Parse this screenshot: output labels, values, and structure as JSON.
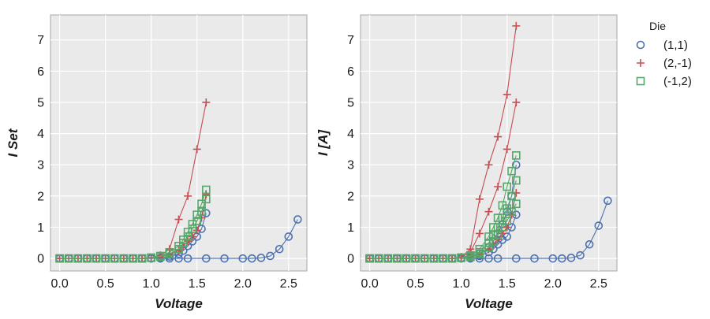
{
  "colors": {
    "(1,1)": "#4c72b0",
    "(2,-1)": "#c44e52",
    "(-1,2)": "#55a868",
    "panel_bg": "#eaeaea",
    "grid": "#ffffff"
  },
  "legend": {
    "title": "Die",
    "entries": [
      {
        "label": "(1,1)",
        "marker": "circle",
        "color": "#4c72b0"
      },
      {
        "label": "(2,-1)",
        "marker": "plus",
        "color": "#c44e52"
      },
      {
        "label": "(-1,2)",
        "marker": "square",
        "color": "#55a868"
      }
    ]
  },
  "chart_data": [
    {
      "type": "line",
      "xlabel": "Voltage",
      "ylabel": "I Set",
      "xlim": [
        -0.1,
        2.7
      ],
      "ylim": [
        -0.4,
        7.8
      ],
      "xticks": [
        "0.0",
        "0.5",
        "1.0",
        "1.5",
        "2.0",
        "2.5"
      ],
      "yticks": [
        "0",
        "1",
        "2",
        "3",
        "4",
        "5",
        "6",
        "7"
      ],
      "grid": true,
      "series": [
        {
          "name": "(1,1)",
          "marker": "circle",
          "x": [
            0,
            0.1,
            0.2,
            0.3,
            0.4,
            0.5,
            0.6,
            0.7,
            0.8,
            0.9,
            1.0,
            1.1,
            1.2,
            1.3,
            1.4,
            1.6,
            1.8,
            2.0,
            2.1,
            2.2,
            2.3,
            2.4,
            2.5,
            2.6
          ],
          "y": [
            0,
            0,
            0,
            0,
            0,
            0,
            0,
            0,
            0,
            0,
            0,
            0,
            0,
            0,
            0,
            0,
            0,
            0,
            0,
            0.02,
            0.08,
            0.3,
            0.7,
            1.25
          ]
        },
        {
          "name": "(1,1)",
          "marker": "circle",
          "x": [
            0,
            0.1,
            0.2,
            0.3,
            0.4,
            0.5,
            0.6,
            0.7,
            0.8,
            0.9,
            1.0,
            1.1,
            1.2,
            1.3,
            1.35,
            1.4,
            1.45,
            1.5,
            1.55,
            1.6
          ],
          "y": [
            0,
            0,
            0,
            0,
            0,
            0,
            0,
            0,
            0,
            0,
            0,
            0.02,
            0.06,
            0.15,
            0.25,
            0.4,
            0.55,
            0.7,
            0.95,
            1.45
          ]
        },
        {
          "name": "(2,-1)",
          "marker": "plus",
          "x": [
            0,
            0.1,
            0.2,
            0.3,
            0.4,
            0.5,
            0.6,
            0.7,
            0.8,
            0.9,
            1.0,
            1.1,
            1.2,
            1.3,
            1.4,
            1.5,
            1.6
          ],
          "y": [
            0,
            0,
            0,
            0,
            0,
            0,
            0,
            0,
            0,
            0,
            0.03,
            0.1,
            0.3,
            1.25,
            2.0,
            3.5,
            5.0
          ]
        },
        {
          "name": "(2,-1)",
          "marker": "plus",
          "x": [
            0,
            0.1,
            0.2,
            0.3,
            0.4,
            0.5,
            0.6,
            0.7,
            0.8,
            0.9,
            1.0,
            1.1,
            1.2,
            1.3,
            1.35,
            1.4,
            1.45,
            1.5,
            1.55,
            1.6
          ],
          "y": [
            0,
            0,
            0,
            0,
            0,
            0,
            0,
            0,
            0,
            0,
            0.02,
            0.05,
            0.12,
            0.25,
            0.4,
            0.55,
            0.7,
            0.9,
            1.3,
            2.05
          ]
        },
        {
          "name": "(-1,2)",
          "marker": "square",
          "x": [
            0,
            0.1,
            0.2,
            0.3,
            0.4,
            0.5,
            0.6,
            0.7,
            0.8,
            0.9,
            1.0,
            1.1,
            1.2,
            1.3,
            1.35,
            1.4,
            1.45,
            1.5,
            1.55,
            1.6
          ],
          "y": [
            0,
            0,
            0,
            0,
            0,
            0,
            0,
            0,
            0,
            0,
            0.02,
            0.06,
            0.15,
            0.3,
            0.5,
            0.7,
            0.95,
            1.2,
            1.5,
            1.9
          ]
        },
        {
          "name": "(-1,2)",
          "marker": "square",
          "x": [
            0,
            0.1,
            0.2,
            0.3,
            0.4,
            0.5,
            0.6,
            0.7,
            0.8,
            0.9,
            1.0,
            1.1,
            1.2,
            1.3,
            1.35,
            1.4,
            1.45,
            1.5,
            1.55,
            1.6
          ],
          "y": [
            0,
            0,
            0,
            0,
            0,
            0,
            0,
            0,
            0,
            0,
            0.03,
            0.08,
            0.2,
            0.4,
            0.6,
            0.85,
            1.1,
            1.4,
            1.75,
            2.2
          ]
        }
      ]
    },
    {
      "type": "line",
      "xlabel": "Voltage",
      "ylabel": "I [A]",
      "xlim": [
        -0.1,
        2.7
      ],
      "ylim": [
        -0.4,
        7.8
      ],
      "xticks": [
        "0.0",
        "0.5",
        "1.0",
        "1.5",
        "2.0",
        "2.5"
      ],
      "yticks": [
        "0",
        "1",
        "2",
        "3",
        "4",
        "5",
        "6",
        "7"
      ],
      "grid": true,
      "series": [
        {
          "name": "(1,1)",
          "marker": "circle",
          "x": [
            0,
            0.1,
            0.2,
            0.3,
            0.4,
            0.5,
            0.6,
            0.7,
            0.8,
            0.9,
            1.0,
            1.1,
            1.2,
            1.3,
            1.4,
            1.6,
            1.8,
            2.0,
            2.1,
            2.2,
            2.3,
            2.4,
            2.5,
            2.6
          ],
          "y": [
            0,
            0,
            0,
            0,
            0,
            0,
            0,
            0,
            0,
            0,
            0,
            0,
            0,
            0,
            0,
            0,
            0,
            0,
            0,
            0.02,
            0.1,
            0.45,
            1.05,
            1.85
          ]
        },
        {
          "name": "(1,1)",
          "marker": "circle",
          "x": [
            0,
            0.1,
            0.2,
            0.3,
            0.4,
            0.5,
            0.6,
            0.7,
            0.8,
            0.9,
            1.0,
            1.1,
            1.2,
            1.3,
            1.35,
            1.4,
            1.45,
            1.5,
            1.55,
            1.6
          ],
          "y": [
            0,
            0,
            0,
            0,
            0,
            0,
            0,
            0,
            0,
            0,
            0.02,
            0.05,
            0.15,
            0.35,
            0.55,
            0.8,
            1.1,
            1.5,
            2.0,
            3.0
          ]
        },
        {
          "name": "(1,1)",
          "marker": "circle",
          "x": [
            0,
            0.1,
            0.2,
            0.3,
            0.4,
            0.5,
            0.6,
            0.7,
            0.8,
            0.9,
            1.0,
            1.1,
            1.2,
            1.3,
            1.35,
            1.4,
            1.45,
            1.5,
            1.55,
            1.6
          ],
          "y": [
            0,
            0,
            0,
            0,
            0,
            0,
            0,
            0,
            0,
            0,
            0.01,
            0.03,
            0.08,
            0.2,
            0.3,
            0.45,
            0.6,
            0.7,
            1.0,
            1.4
          ]
        },
        {
          "name": "(2,-1)",
          "marker": "plus",
          "x": [
            0,
            0.1,
            0.2,
            0.3,
            0.4,
            0.5,
            0.6,
            0.7,
            0.8,
            0.9,
            1.0,
            1.1,
            1.2,
            1.3,
            1.4,
            1.5,
            1.6
          ],
          "y": [
            0,
            0,
            0,
            0,
            0,
            0,
            0,
            0,
            0,
            0,
            0.05,
            0.3,
            1.9,
            3.0,
            3.9,
            5.25,
            7.45
          ]
        },
        {
          "name": "(2,-1)",
          "marker": "plus",
          "x": [
            0,
            0.1,
            0.2,
            0.3,
            0.4,
            0.5,
            0.6,
            0.7,
            0.8,
            0.9,
            1.0,
            1.1,
            1.2,
            1.3,
            1.4,
            1.5,
            1.6
          ],
          "y": [
            0,
            0,
            0,
            0,
            0,
            0,
            0,
            0,
            0,
            0,
            0.04,
            0.2,
            0.8,
            1.5,
            2.3,
            3.5,
            5.0
          ]
        },
        {
          "name": "(2,-1)",
          "marker": "plus",
          "x": [
            0,
            0.1,
            0.2,
            0.3,
            0.4,
            0.5,
            0.6,
            0.7,
            0.8,
            0.9,
            1.0,
            1.1,
            1.2,
            1.3,
            1.35,
            1.4,
            1.45,
            1.5,
            1.55,
            1.6
          ],
          "y": [
            0,
            0,
            0,
            0,
            0,
            0,
            0,
            0,
            0,
            0,
            0.02,
            0.06,
            0.15,
            0.3,
            0.45,
            0.6,
            0.8,
            1.0,
            1.4,
            2.1
          ]
        },
        {
          "name": "(-1,2)",
          "marker": "square",
          "x": [
            0,
            0.1,
            0.2,
            0.3,
            0.4,
            0.5,
            0.6,
            0.7,
            0.8,
            0.9,
            1.0,
            1.1,
            1.2,
            1.3,
            1.35,
            1.4,
            1.45,
            1.5,
            1.55,
            1.6
          ],
          "y": [
            0,
            0,
            0,
            0,
            0,
            0,
            0,
            0,
            0,
            0,
            0.03,
            0.1,
            0.3,
            0.7,
            1.0,
            1.3,
            1.7,
            2.3,
            2.8,
            3.3
          ]
        },
        {
          "name": "(-1,2)",
          "marker": "square",
          "x": [
            0,
            0.1,
            0.2,
            0.3,
            0.4,
            0.5,
            0.6,
            0.7,
            0.8,
            0.9,
            1.0,
            1.1,
            1.2,
            1.3,
            1.35,
            1.4,
            1.45,
            1.5,
            1.55,
            1.6
          ],
          "y": [
            0,
            0,
            0,
            0,
            0,
            0,
            0,
            0,
            0,
            0,
            0.02,
            0.08,
            0.2,
            0.5,
            0.75,
            1.0,
            1.3,
            1.6,
            2.0,
            2.5
          ]
        },
        {
          "name": "(-1,2)",
          "marker": "square",
          "x": [
            0,
            0.1,
            0.2,
            0.3,
            0.4,
            0.5,
            0.6,
            0.7,
            0.8,
            0.9,
            1.0,
            1.1,
            1.2,
            1.3,
            1.35,
            1.4,
            1.45,
            1.5,
            1.55,
            1.6
          ],
          "y": [
            0,
            0,
            0,
            0,
            0,
            0,
            0,
            0,
            0,
            0,
            0.02,
            0.05,
            0.15,
            0.35,
            0.55,
            0.75,
            1.0,
            1.2,
            1.5,
            1.75
          ]
        }
      ]
    }
  ]
}
